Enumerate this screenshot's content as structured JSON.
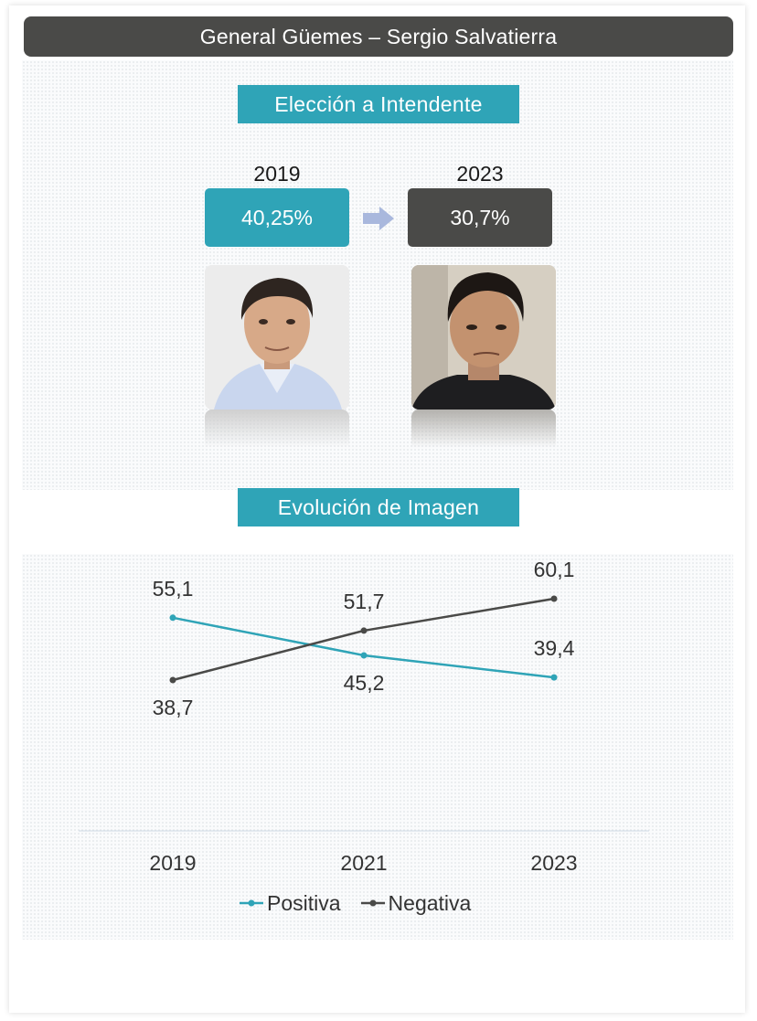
{
  "header": {
    "title": "General Güemes – Sergio Salvatierra"
  },
  "election": {
    "section_title": "Elección a Intendente",
    "year_a": "2019",
    "result_a": "40,25%",
    "year_b": "2023",
    "result_b": "30,7%",
    "color_a": "#2fa4b7",
    "color_b": "#4a4a48"
  },
  "image": {
    "section_title": "Evolución de Imagen"
  },
  "chart_data": {
    "type": "line",
    "categories": [
      "2019",
      "2021",
      "2023"
    ],
    "series": [
      {
        "name": "Positiva",
        "values": [
          55.1,
          45.2,
          39.4
        ],
        "labels": [
          "55,1",
          "45,2",
          "39,4"
        ],
        "color": "#2fa4b7"
      },
      {
        "name": "Negativa",
        "values": [
          38.7,
          51.7,
          60.1
        ],
        "labels": [
          "38,7",
          "51,7",
          "60,1"
        ],
        "color": "#4a4a48"
      }
    ],
    "legend_position": "bottom",
    "grid": false
  }
}
